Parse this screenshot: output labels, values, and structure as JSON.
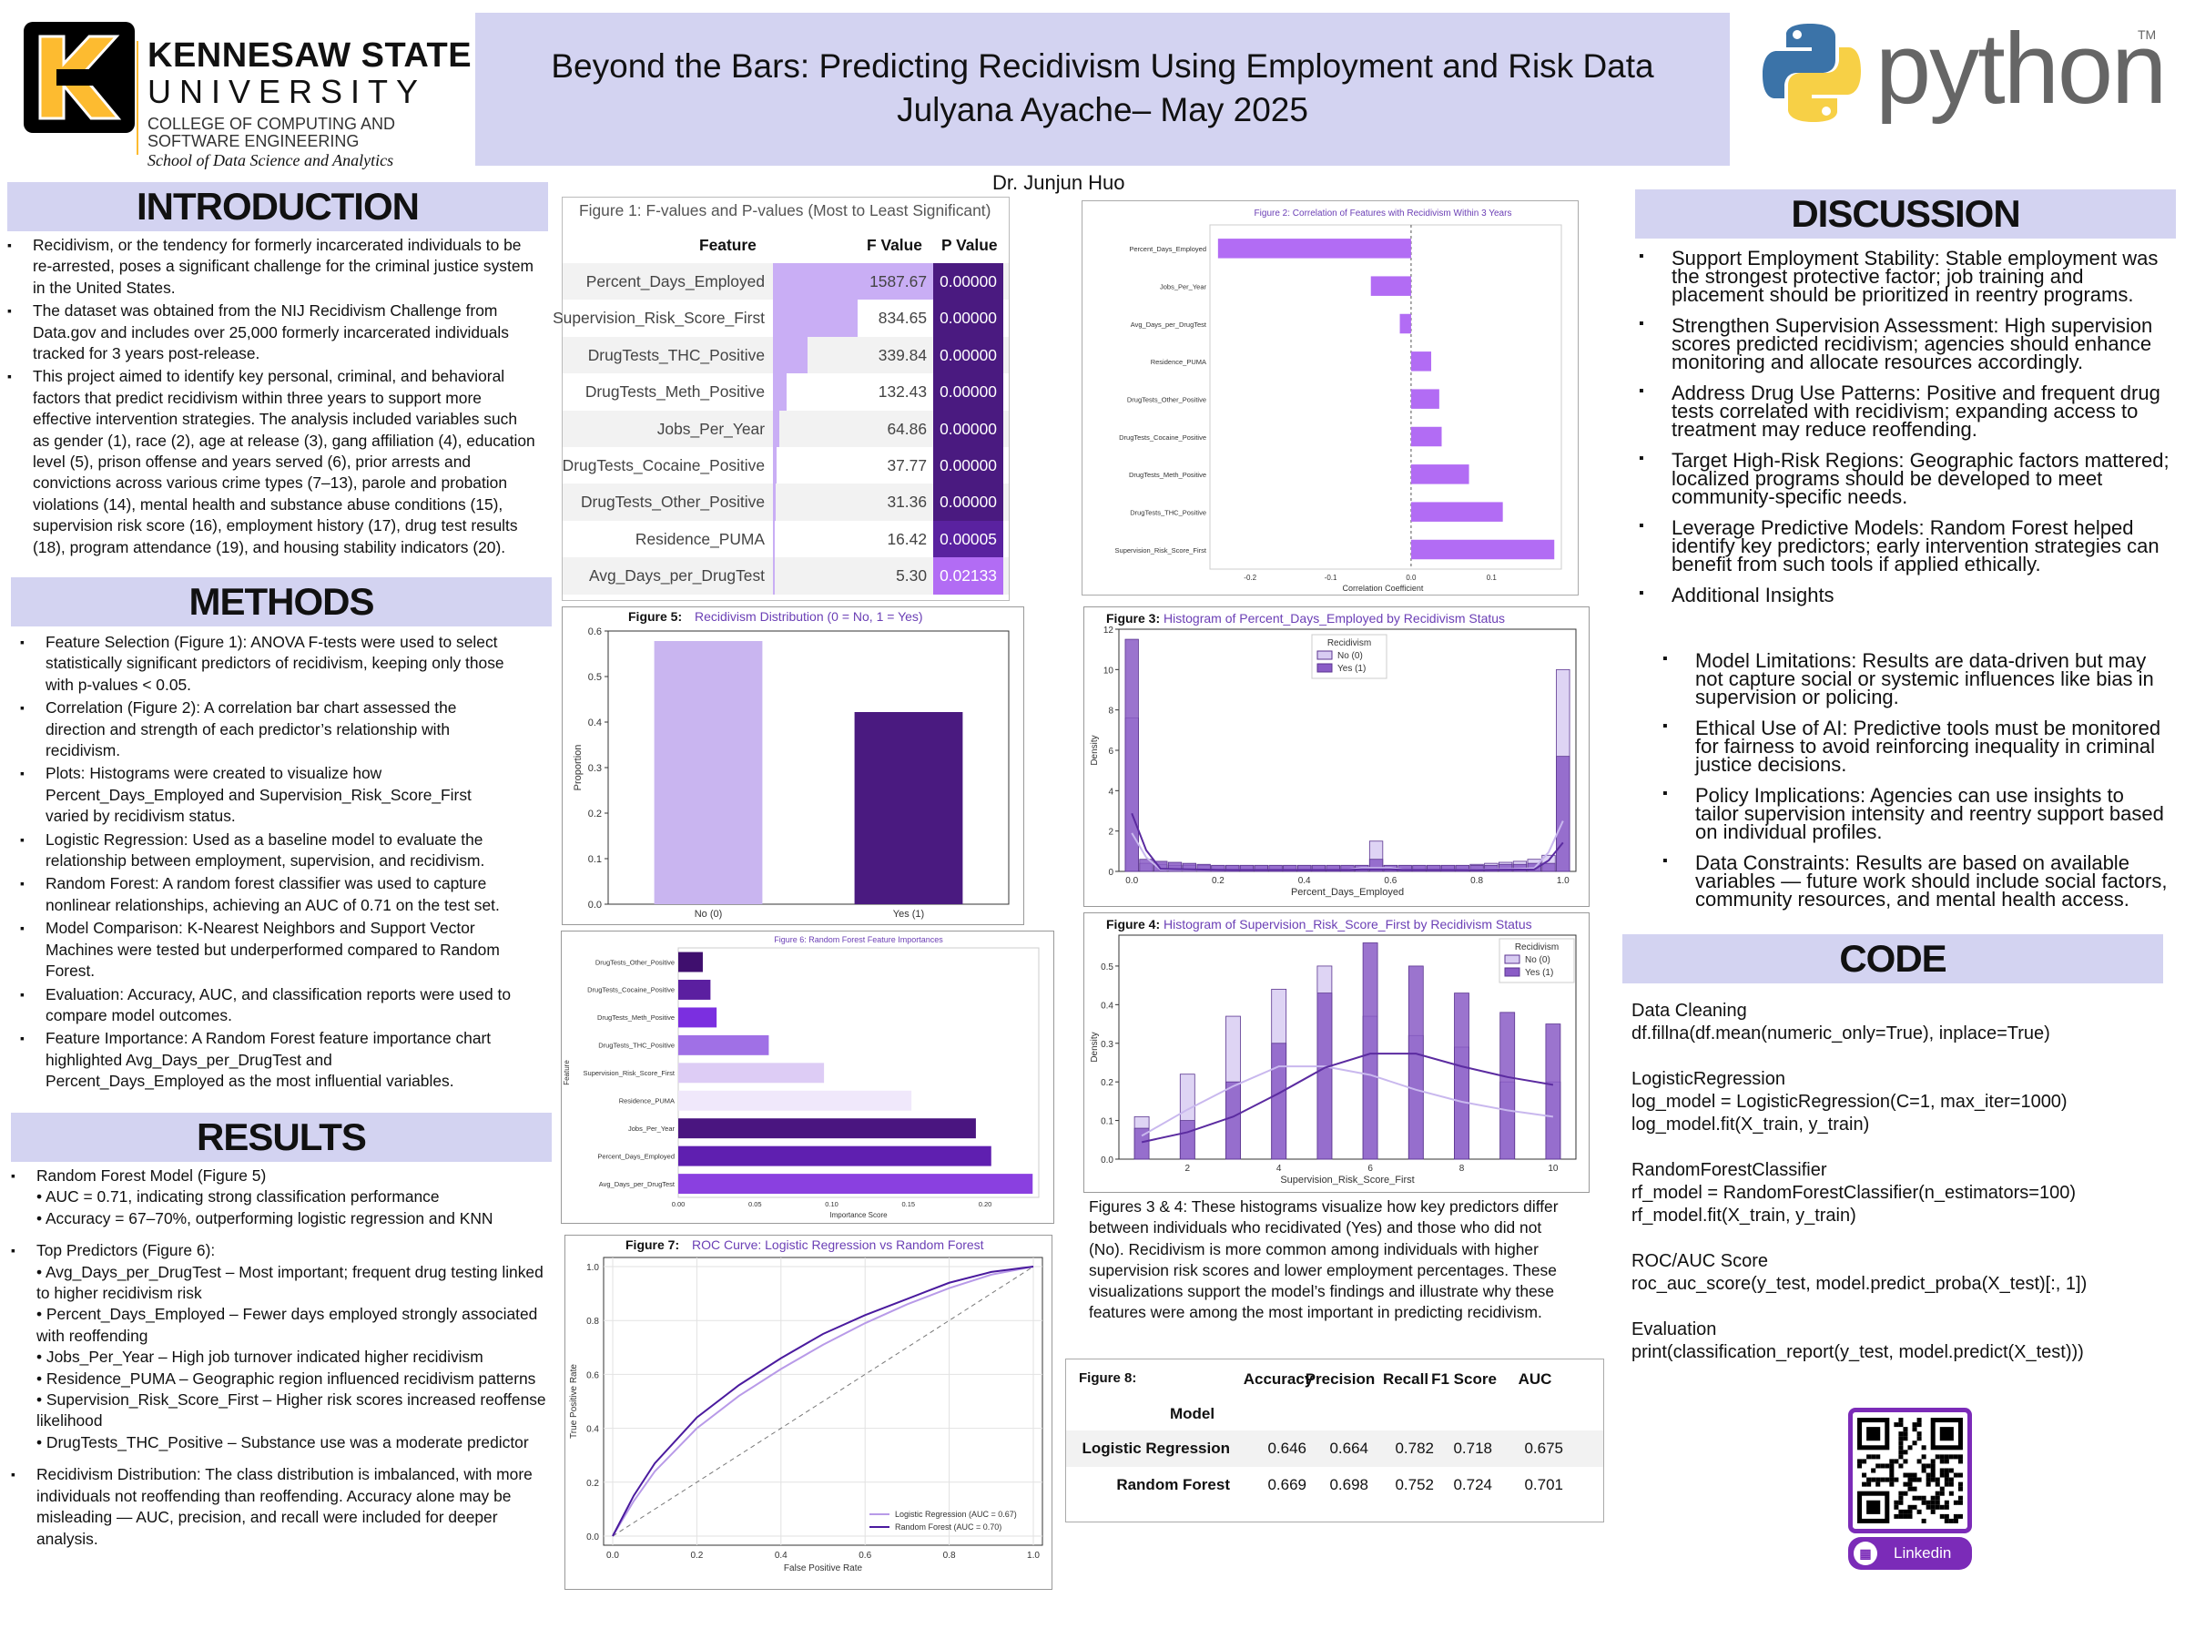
{
  "header": {
    "logo_alt": "Kennesaw State University logo",
    "univ_line1": "KENNESAW STATE",
    "univ_line2": "UNIVERSITY",
    "college_line1": "COLLEGE OF COMPUTING AND",
    "college_line2": "SOFTWARE ENGINEERING",
    "school": "School of Data Science and Analytics",
    "title": "Beyond the Bars: Predicting Recidivism Using Employment and Risk Data",
    "author": "Julyana Ayache– May 2025",
    "advisor": "Dr. Junjun Huo",
    "python_word": "python",
    "tm": "TM"
  },
  "sections": {
    "introduction": "INTRODUCTION",
    "methods": "METHODS",
    "results": "RESULTS",
    "discussion": "DISCUSSION",
    "code": "CODE"
  },
  "introduction": [
    "Recidivism, or the tendency for formerly incarcerated individuals to be re-arrested, poses a significant challenge for the criminal justice system in the United States.",
    "The dataset was obtained from the NIJ Recidivism Challenge from Data.gov and includes over 25,000 formerly incarcerated individuals tracked for 3 years post-release.",
    "This project aimed to identify key personal, criminal, and behavioral factors that predict recidivism within three years to support more effective intervention strategies. The analysis included variables such as gender (1), race (2), age at release (3), gang affiliation (4), education level (5), prison offense and years served (6), prior arrests and convictions across various crime types (7–13), parole and probation violations (14), mental health and substance abuse conditions (15), supervision risk score (16), employment history (17), drug test results (18), program attendance (19), and housing stability indicators (20)."
  ],
  "methods": [
    "Feature Selection (Figure 1): ANOVA F-tests were used to select statistically significant predictors of recidivism, keeping only those with p-values < 0.05.",
    "Correlation (Figure 2): A correlation bar chart assessed the direction and strength of each predictor’s relationship with recidivism.",
    "Plots: Histograms were created to visualize how Percent_Days_Employed and Supervision_Risk_Score_First varied by recidivism status.",
    "Logistic Regression: Used as a baseline model to evaluate the relationship between employment, supervision, and recidivism.",
    "Random Forest: A random forest classifier was used to capture nonlinear relationships, achieving an AUC of 0.71 on the test set.",
    "Model Comparison: K-Nearest Neighbors and Support Vector Machines were tested but underperformed compared to Random Forest.",
    "Evaluation: Accuracy, AUC, and classification reports were used to compare model outcomes.",
    "Feature Importance: A Random Forest feature importance chart highlighted Avg_Days_per_DrugTest and Percent_Days_Employed as the most influential variables."
  ],
  "results": {
    "rf_head": "Random Forest Model (Figure 5)",
    "rf_auc": "• AUC = 0.71, indicating strong classification performance",
    "rf_acc": "• Accuracy = 67–70%, outperforming logistic regression and KNN",
    "top_head": "Top Predictors (Figure 6):",
    "top_items": [
      "• Avg_Days_per_DrugTest – Most important; frequent drug testing linked to higher recidivism risk",
      "• Percent_Days_Employed – Fewer days employed strongly associated with reoffending",
      "• Jobs_Per_Year – High job turnover indicated higher recidivism",
      "• Residence_PUMA – Geographic region influenced recidivism patterns",
      "• Supervision_Risk_Score_First – Higher risk scores increased reoffense likelihood",
      "• DrugTests_THC_Positive – Substance use was a moderate predictor"
    ],
    "dist": "Recidivism Distribution: The class distribution is imbalanced, with more individuals not reoffending than reoffending. Accuracy alone may be misleading — AUC, precision, and recall were included for deeper analysis."
  },
  "fig1": {
    "caption": "Figure 1: F-values and P-values (Most to Least Significant)",
    "col_feature": "Feature",
    "col_f": "F Value",
    "col_p": "P Value",
    "rows": [
      {
        "feature": "Percent_Days_Employed",
        "f": "1587.67",
        "p": "0.00000",
        "fval": 1587.67
      },
      {
        "feature": "Supervision_Risk_Score_First",
        "f": "834.65",
        "p": "0.00000",
        "fval": 834.65
      },
      {
        "feature": "DrugTests_THC_Positive",
        "f": "339.84",
        "p": "0.00000",
        "fval": 339.84
      },
      {
        "feature": "DrugTests_Meth_Positive",
        "f": "132.43",
        "p": "0.00000",
        "fval": 132.43
      },
      {
        "feature": "Jobs_Per_Year",
        "f": "64.86",
        "p": "0.00000",
        "fval": 64.86
      },
      {
        "feature": "DrugTests_Cocaine_Positive",
        "f": "37.77",
        "p": "0.00000",
        "fval": 37.77
      },
      {
        "feature": "DrugTests_Other_Positive",
        "f": "31.36",
        "p": "0.00000",
        "fval": 31.36
      },
      {
        "feature": "Residence_PUMA",
        "f": "16.42",
        "p": "0.00005",
        "fval": 16.42
      },
      {
        "feature": "Avg_Days_per_DrugTest",
        "f": "5.30",
        "p": "0.02133",
        "fval": 5.3
      }
    ]
  },
  "chart_data": [
    {
      "id": "fig2",
      "type": "bar",
      "orientation": "horizontal",
      "title": "Figure 2: Correlation of Features with Recidivism Within 3 Years",
      "xlabel": "Correlation Coefficient",
      "xlim": [
        -0.25,
        0.18
      ],
      "xticks": [
        "-0.2",
        "-0.1",
        "0.0",
        "0.1"
      ],
      "categories": [
        "Percent_Days_Employed",
        "Jobs_Per_Year",
        "Avg_Days_per_DrugTest",
        "Residence_PUMA",
        "DrugTests_Other_Positive",
        "DrugTests_Cocaine_Positive",
        "DrugTests_Meth_Positive",
        "DrugTests_THC_Positive",
        "Supervision_Risk_Score_First"
      ],
      "values": [
        -0.24,
        -0.05,
        -0.014,
        0.025,
        0.035,
        0.038,
        0.072,
        0.114,
        0.178
      ],
      "color": "#b26cf4"
    },
    {
      "id": "fig5",
      "type": "bar",
      "caption_label": "Figure 5:",
      "title": "Recidivism Distribution (0 = No, 1 = Yes)",
      "ylabel": "Proportion",
      "ylim": [
        0,
        0.6
      ],
      "yticks": [
        "0.0",
        "0.1",
        "0.2",
        "0.3",
        "0.4",
        "0.5",
        "0.6"
      ],
      "categories": [
        "No (0)",
        "Yes (1)"
      ],
      "values": [
        0.578,
        0.422
      ],
      "colors": [
        "#c9b5f0",
        "#4a1a80"
      ]
    },
    {
      "id": "fig6",
      "type": "bar",
      "orientation": "horizontal",
      "title": "Figure 6: Random Forest Feature Importances",
      "xlabel": "Importance Score",
      "ylabel": "Feature",
      "xlim": [
        0,
        0.235
      ],
      "xticks": [
        "0.00",
        "0.05",
        "0.10",
        "0.15",
        "0.20"
      ],
      "categories": [
        "DrugTests_Other_Positive",
        "DrugTests_Cocaine_Positive",
        "DrugTests_Meth_Positive",
        "DrugTests_THC_Positive",
        "Supervision_Risk_Score_First",
        "Residence_PUMA",
        "Jobs_Per_Year",
        "Percent_Days_Employed",
        "Avg_Days_per_DrugTest"
      ],
      "values": [
        0.016,
        0.021,
        0.025,
        0.059,
        0.095,
        0.152,
        0.194,
        0.204,
        0.231
      ],
      "colors": [
        "#3f0f6e",
        "#5b1fa0",
        "#7b2fe0",
        "#a070e6",
        "#ddccf5",
        "#f0e8fb",
        "#4a1580",
        "#5f1fb0",
        "#8a40e0"
      ]
    },
    {
      "id": "fig7",
      "type": "line",
      "caption_label": "Figure 7:",
      "title": "ROC Curve: Logistic Regression vs Random Forest",
      "xlabel": "False Positive Rate",
      "ylabel": "True Positive Rate",
      "xlim": [
        0,
        1
      ],
      "ylim": [
        0,
        1
      ],
      "ticks": [
        "0.0",
        "0.2",
        "0.4",
        "0.6",
        "0.8",
        "1.0"
      ],
      "grid": true,
      "legend": "bottom-right",
      "series": [
        {
          "name": "Logistic Regression (AUC = 0.67)",
          "color": "#b89ae8",
          "x": [
            0,
            0.05,
            0.1,
            0.2,
            0.3,
            0.4,
            0.5,
            0.6,
            0.7,
            0.8,
            0.9,
            1.0
          ],
          "y": [
            0,
            0.13,
            0.24,
            0.4,
            0.52,
            0.62,
            0.71,
            0.79,
            0.86,
            0.92,
            0.97,
            1.0
          ]
        },
        {
          "name": "Random Forest (AUC = 0.70)",
          "color": "#4a1a9e",
          "x": [
            0,
            0.05,
            0.1,
            0.2,
            0.3,
            0.4,
            0.5,
            0.6,
            0.7,
            0.8,
            0.9,
            1.0
          ],
          "y": [
            0,
            0.15,
            0.27,
            0.44,
            0.56,
            0.66,
            0.75,
            0.82,
            0.88,
            0.94,
            0.98,
            1.0
          ]
        }
      ]
    },
    {
      "id": "fig3",
      "type": "bar",
      "subtype": "histogram",
      "caption_label": "Figure 3:",
      "title": "Histogram of Percent_Days_Employed by Recidivism Status",
      "xlabel": "Percent_Days_Employed",
      "ylabel": "Density",
      "xlim": [
        -0.03,
        1.03
      ],
      "ylim": [
        0,
        12
      ],
      "xticks": [
        "0.0",
        "0.2",
        "0.4",
        "0.6",
        "0.8",
        "1.0"
      ],
      "yticks": [
        "0",
        "2",
        "4",
        "6",
        "8",
        "10",
        "12"
      ],
      "legend_title": "Recidivism",
      "legend": "top-center",
      "series": [
        {
          "name": "No (0)",
          "color": "#d8ccf2",
          "values": [
            7.6,
            0.4,
            0.35,
            0.3,
            0.3,
            0.3,
            0.3,
            0.3,
            0.3,
            0.3,
            0.3,
            0.3,
            0.3,
            0.3,
            0.3,
            0.3,
            0.3,
            1.5,
            0.3,
            0.3,
            0.3,
            0.3,
            0.3,
            0.3,
            0.35,
            0.4,
            0.45,
            0.5,
            0.6,
            0.8,
            10.0
          ]
        },
        {
          "name": "Yes (1)",
          "color": "#8a5cc6",
          "values": [
            11.5,
            0.6,
            0.5,
            0.45,
            0.4,
            0.35,
            0.3,
            0.3,
            0.3,
            0.3,
            0.3,
            0.3,
            0.3,
            0.3,
            0.3,
            0.3,
            0.3,
            0.6,
            0.3,
            0.3,
            0.3,
            0.3,
            0.3,
            0.3,
            0.3,
            0.3,
            0.35,
            0.35,
            0.4,
            0.4,
            5.7
          ]
        }
      ]
    },
    {
      "id": "fig4",
      "type": "bar",
      "subtype": "histogram",
      "caption_label": "Figure 4:",
      "title": "Histogram of Supervision_Risk_Score_First by Recidivism Status",
      "xlabel": "Supervision_Risk_Score_First",
      "ylabel": "Density",
      "xlim": [
        0.5,
        10.5
      ],
      "ylim": [
        0,
        0.58
      ],
      "xticks": [
        "2",
        "4",
        "6",
        "8",
        "10"
      ],
      "yticks": [
        "0.0",
        "0.1",
        "0.2",
        "0.3",
        "0.4",
        "0.5"
      ],
      "legend_title": "Recidivism",
      "legend": "top-right",
      "x": [
        1,
        2,
        3,
        4,
        5,
        6,
        7,
        8,
        9,
        10
      ],
      "series": [
        {
          "name": "No (0)",
          "color": "#d8ccf2",
          "values": [
            0.11,
            0.22,
            0.37,
            0.44,
            0.5,
            0.37,
            0.32,
            0.29,
            0.2,
            0.2
          ]
        },
        {
          "name": "Yes (1)",
          "color": "#8a5cc6",
          "values": [
            0.08,
            0.1,
            0.2,
            0.3,
            0.43,
            0.56,
            0.5,
            0.43,
            0.38,
            0.35
          ]
        }
      ]
    }
  ],
  "fig34_caption": "Figures 3 & 4: These histograms visualize how key predictors differ between individuals who recidivated (Yes) and those who did not (No). Recidivism is more common among individuals with higher supervision risk scores and lower employment percentages. These visualizations support the model’s findings and illustrate why these features were among the most important in predicting recidivism.",
  "fig8": {
    "label": "Figure 8:",
    "headers": [
      "Accuracy",
      "Precision",
      "Recall",
      "F1 Score",
      "AUC"
    ],
    "model_label": "Model",
    "rows": [
      {
        "name": "Logistic Regression",
        "vals": [
          "0.646",
          "0.664",
          "0.782",
          "0.718",
          "0.675"
        ]
      },
      {
        "name": "Random Forest",
        "vals": [
          "0.669",
          "0.698",
          "0.752",
          "0.724",
          "0.701"
        ]
      }
    ]
  },
  "discussion": [
    "Support Employment Stability: Stable employment was the strongest protective factor; job training and placement should be prioritized in reentry programs.",
    "Strengthen Supervision Assessment: High supervision scores predicted recidivism; agencies should enhance monitoring and allocate resources accordingly.",
    "Address Drug Use Patterns: Positive and frequent drug tests correlated with recidivism; expanding access to treatment may reduce reoffending.",
    "Target High-Risk Regions: Geographic factors mattered; localized programs should be developed to meet community-specific needs.",
    "Leverage Predictive Models: Random Forest helped identify key predictors; early intervention strategies can benefit from such tools if applied ethically.",
    "Additional Insights"
  ],
  "discussion_sub": [
    "Model Limitations: Results are data-driven but may not capture social or systemic influences like bias in supervision or policing.",
    "Ethical Use of AI: Predictive tools must be monitored for fairness to avoid reinforcing inequality in criminal justice decisions.",
    "Policy Implications: Agencies can use insights to tailor supervision intensity and reentry support based on individual profiles.",
    "Data Constraints: Results are based on available variables — future work should include social factors, community resources, and mental health access."
  ],
  "code": [
    "Data Cleaning",
    "df.fillna(df.mean(numeric_only=True), inplace=True)",
    "",
    "LogisticRegression",
    "log_model = LogisticRegression(C=1, max_iter=1000)",
    "log_model.fit(X_train, y_train)",
    "",
    "RandomForestClassifier",
    "rf_model = RandomForestClassifier(n_estimators=100)",
    "rf_model.fit(X_train, y_train)",
    "",
    "ROC/AUC Score",
    "roc_auc_score(y_test, model.predict_proba(X_test)[:, 1])",
    "",
    "Evaluation",
    "print(classification_report(y_test, model.predict(X_test)))"
  ],
  "qr": {
    "label": "Linkedin"
  },
  "colors": {
    "header_band": "#d3d3f1",
    "accent": "#6b3fb5",
    "p_cell": "#4a1a80",
    "f_bar": "#c9aef5"
  }
}
